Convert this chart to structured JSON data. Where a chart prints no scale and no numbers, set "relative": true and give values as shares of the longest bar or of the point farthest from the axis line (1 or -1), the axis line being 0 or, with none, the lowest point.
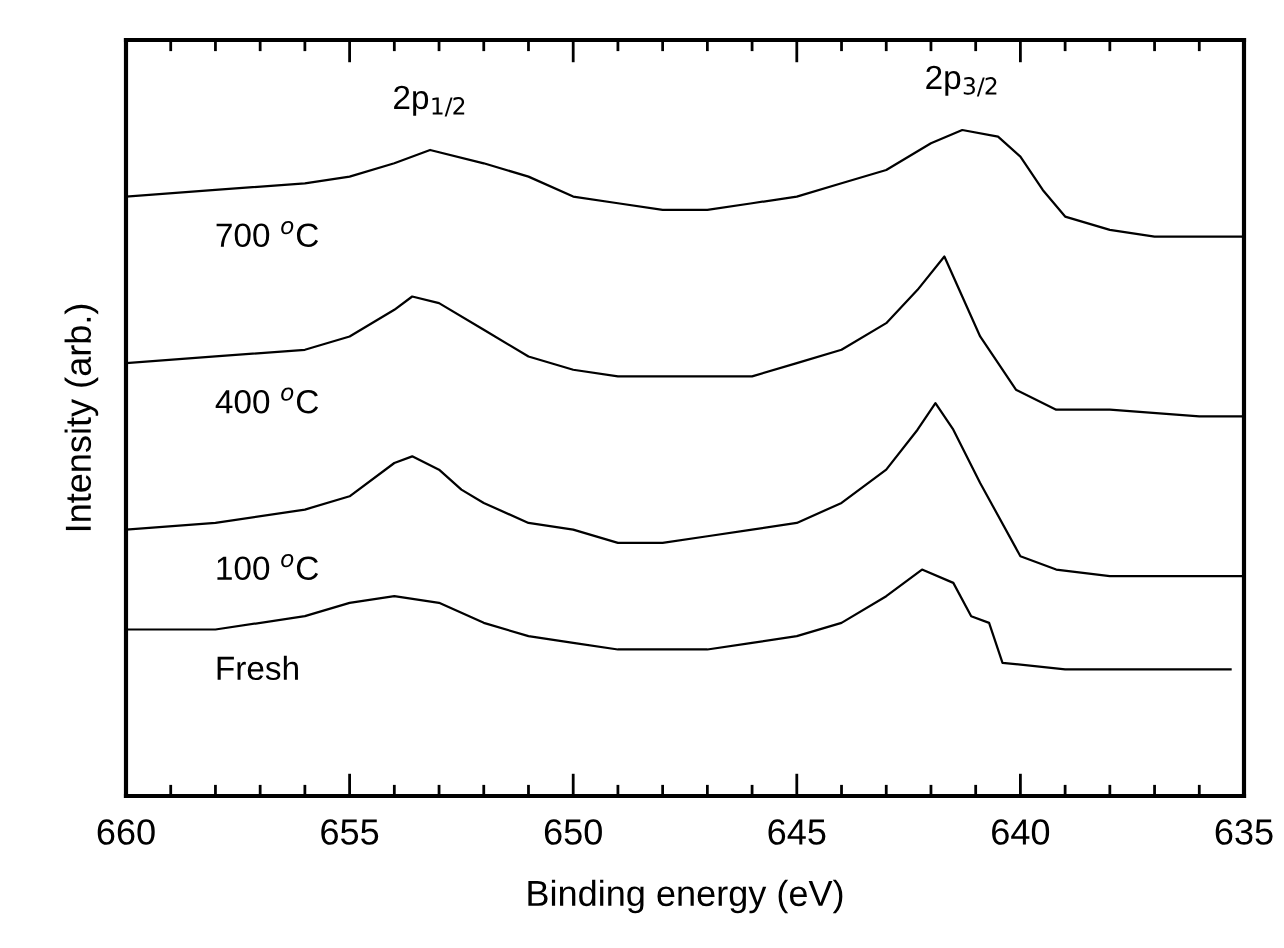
{
  "chart_data": {
    "type": "line",
    "relative": true,
    "xlabel": "Binding energy (eV)",
    "ylabel": "Intensity (arb.)",
    "xlim": [
      660,
      635
    ],
    "xticks": [
      660,
      655,
      650,
      645,
      640,
      635
    ],
    "grid": false,
    "legend": false,
    "marker": "none",
    "line_style": "solid",
    "annotations": [
      {
        "text": "2p$_{1/2}$",
        "x": 653.2,
        "y": 0.97
      },
      {
        "text": "2p$_{3/2}$",
        "x": 641.3,
        "y": 1.0
      }
    ],
    "series": [
      {
        "name": "700 $^{o}$C",
        "color": "#000000",
        "x": [
          660,
          658,
          656,
          655,
          654,
          653.2,
          652,
          651,
          650,
          649,
          648,
          647,
          646,
          645,
          644,
          643,
          642,
          641.3,
          640.5,
          640,
          639.5,
          639,
          638,
          637,
          636,
          635
        ],
        "values": [
          0.9,
          0.91,
          0.92,
          0.93,
          0.95,
          0.97,
          0.95,
          0.93,
          0.9,
          0.89,
          0.88,
          0.88,
          0.89,
          0.9,
          0.92,
          0.94,
          0.98,
          1.0,
          0.99,
          0.96,
          0.91,
          0.87,
          0.85,
          0.84,
          0.84,
          0.84
        ]
      },
      {
        "name": "400 $^{o}$C",
        "color": "#000000",
        "x": [
          660,
          658,
          656,
          655,
          654,
          653.6,
          653,
          652,
          651,
          650,
          649,
          648,
          647,
          646,
          645,
          644,
          643,
          642.3,
          641.7,
          641.3,
          640.9,
          640.1,
          639.2,
          638,
          636,
          635
        ],
        "values": [
          0.65,
          0.66,
          0.67,
          0.69,
          0.73,
          0.75,
          0.74,
          0.7,
          0.66,
          0.64,
          0.63,
          0.63,
          0.63,
          0.63,
          0.65,
          0.67,
          0.71,
          0.76,
          0.81,
          0.75,
          0.69,
          0.61,
          0.58,
          0.58,
          0.57,
          0.57
        ]
      },
      {
        "name": "100 $^{o}$C",
        "color": "#000000",
        "x": [
          660,
          658,
          656,
          655,
          654,
          653.6,
          653,
          652.5,
          652,
          651,
          650,
          649,
          648,
          647,
          646,
          645,
          644,
          643,
          642.3,
          641.9,
          641.5,
          640.9,
          640,
          639.2,
          638,
          636,
          635
        ],
        "values": [
          0.4,
          0.41,
          0.43,
          0.45,
          0.5,
          0.51,
          0.49,
          0.46,
          0.44,
          0.41,
          0.4,
          0.38,
          0.38,
          0.39,
          0.4,
          0.41,
          0.44,
          0.49,
          0.55,
          0.59,
          0.55,
          0.47,
          0.36,
          0.34,
          0.33,
          0.33,
          0.33
        ]
      },
      {
        "name": "Fresh",
        "color": "#000000",
        "x": [
          660,
          658,
          656,
          655,
          654,
          653,
          652,
          651,
          650,
          649,
          648,
          647,
          646,
          645,
          644,
          643,
          642.2,
          641.5,
          641.1,
          640.7,
          640.4,
          639,
          637,
          635.3
        ],
        "values": [
          0.25,
          0.25,
          0.27,
          0.29,
          0.3,
          0.29,
          0.26,
          0.24,
          0.23,
          0.22,
          0.22,
          0.22,
          0.23,
          0.24,
          0.26,
          0.3,
          0.34,
          0.32,
          0.27,
          0.26,
          0.2,
          0.19,
          0.19,
          0.19
        ]
      }
    ]
  }
}
